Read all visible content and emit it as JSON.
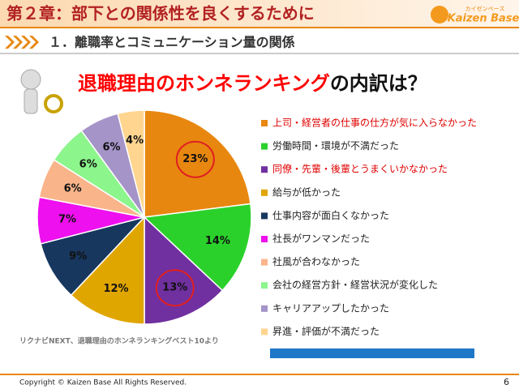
{
  "header": {
    "chapter": "第２章：部下との関係性を良くするために",
    "logo": "Kaizen Base",
    "logo_sub": "カイゼンベース",
    "section": "１．離職率とコミュニケーション量の関係"
  },
  "chart_data": {
    "type": "pie",
    "title": [
      "退職理由のホンネランキング",
      "の内訳は？"
    ],
    "categories": [
      "上司・経営者の仕事の仕方が気に入らなかった",
      "労働時間・環境が不満だった",
      "同僚・先輩・後輩とうまくいかなかった",
      "給与が低かった",
      "仕事内容が面白くなかった",
      "社長がワンマンだった",
      "社風が合わなかった",
      "会社の経営方針・経営状況が変化した",
      "キャリアアップしたかった",
      "昇進・評価が不満だった"
    ],
    "values": [
      23,
      14,
      13,
      12,
      9,
      7,
      6,
      6,
      6,
      4
    ],
    "value_labels": [
      "23%",
      "14%",
      "13%",
      "12%",
      "9%",
      "7%",
      "6%",
      "6%",
      "6%",
      "4%"
    ],
    "colors": [
      "#E8870F",
      "#2BD12B",
      "#7030A0",
      "#E0A600",
      "#17375E",
      "#EE10EE",
      "#F9B48A",
      "#8CF58C",
      "#A594C8",
      "#FFD58F"
    ],
    "highlighted": [
      0,
      2
    ],
    "source": "リクナビNEXT、退職理由のホンネランキングベスト10より"
  },
  "footer": {
    "copyright": "Copyright ©  Kaizen Base  All Rights Reserved.",
    "page": "6"
  }
}
